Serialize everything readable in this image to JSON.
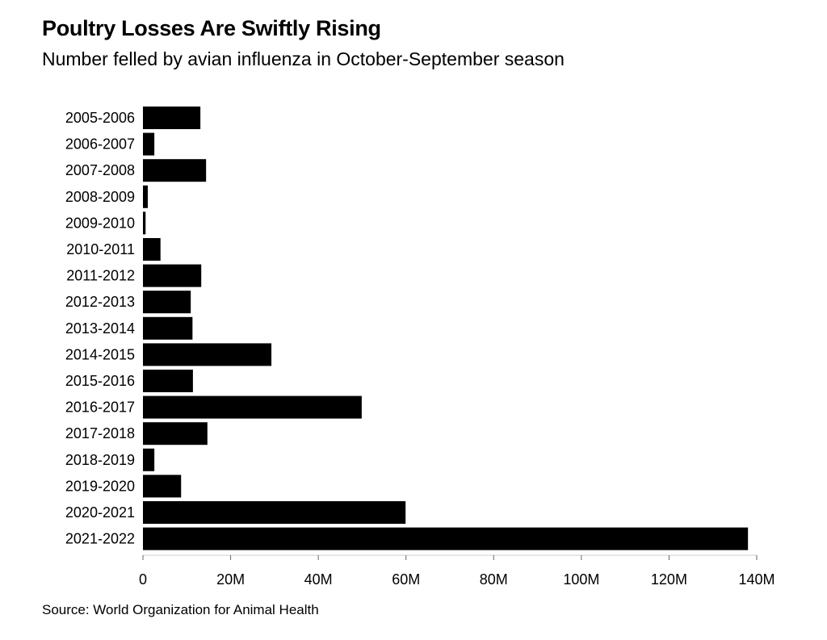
{
  "chart_data": {
    "type": "bar",
    "orientation": "horizontal",
    "title": "Poultry Losses Are Swiftly Rising",
    "subtitle": "Number felled by avian influenza in October-September season",
    "source": "Source: World Organization for Animal Health",
    "categories": [
      "2005-2006",
      "2006-2007",
      "2007-2008",
      "2008-2009",
      "2009-2010",
      "2010-2011",
      "2011-2012",
      "2012-2013",
      "2013-2014",
      "2014-2015",
      "2015-2016",
      "2016-2017",
      "2017-2018",
      "2018-2019",
      "2019-2020",
      "2020-2021",
      "2021-2022"
    ],
    "values": [
      13.1,
      2.6,
      14.4,
      1.1,
      0.6,
      4.0,
      13.3,
      10.9,
      11.3,
      29.3,
      11.4,
      49.9,
      14.7,
      2.6,
      8.7,
      59.9,
      138.0
    ],
    "unit": "M",
    "xlim": [
      0,
      140
    ],
    "xticks": [
      0,
      20,
      40,
      60,
      80,
      100,
      120,
      140
    ],
    "xtick_labels": [
      "0",
      "20M",
      "40M",
      "60M",
      "80M",
      "100M",
      "120M",
      "140M"
    ],
    "bar_color": "#000000",
    "grid": false
  }
}
